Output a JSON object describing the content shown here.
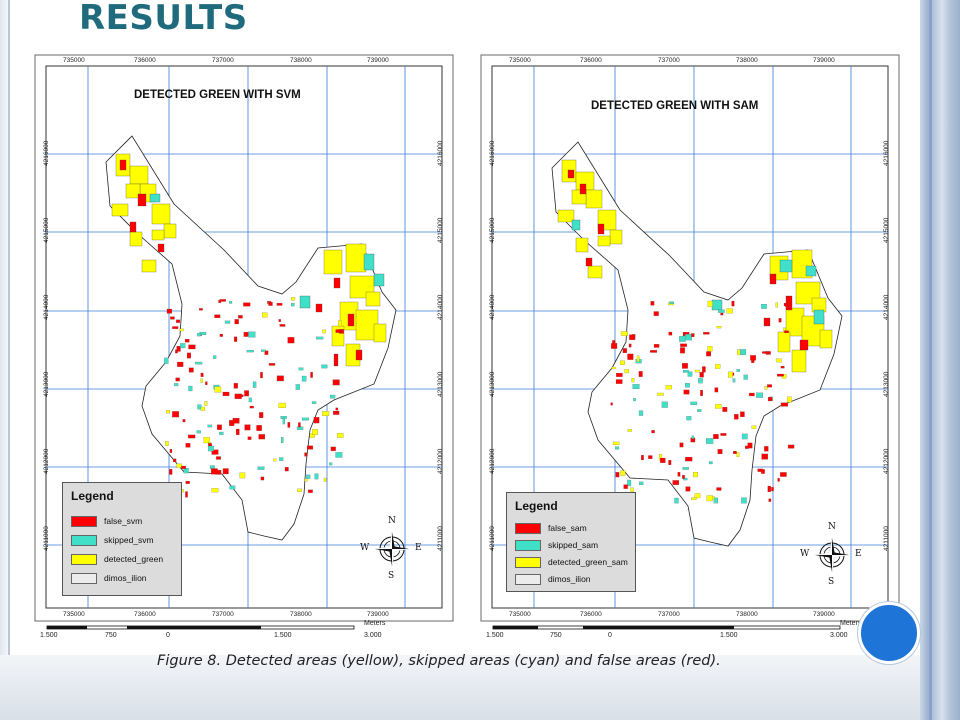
{
  "slide": {
    "title": "RESULTS",
    "caption": "Figure 8. Detected areas (yellow), skipped areas (cyan) and false areas (red).",
    "colors": {
      "title": "#1f6b7d",
      "false": "#ff0000",
      "skipped": "#40e0c8",
      "detected": "#ffff00",
      "boundary": "#e8e8e8",
      "grid": "#3b7bd8",
      "accent_circle": "#1f74d8"
    }
  },
  "maps": [
    {
      "id": "svm",
      "title": "DETECTED GREEN WITH SVM",
      "x_ticks": [
        "735000",
        "736000",
        "737000",
        "738000",
        "739000"
      ],
      "y_ticks": [
        "4211000",
        "4212000",
        "4213000",
        "4214000",
        "4215000",
        "4216000"
      ],
      "legend": {
        "title": "Legend",
        "items": [
          {
            "label": "false_svm",
            "color": "#ff0000"
          },
          {
            "label": "skipped_svm",
            "color": "#40e0c8"
          },
          {
            "label": "detected_green",
            "color": "#ffff00"
          },
          {
            "label": "dimos_ilion",
            "color": "#ececec"
          }
        ]
      },
      "compass": {
        "n": "N",
        "s": "S",
        "e": "E",
        "w": "W"
      },
      "scale": {
        "unit": "Meters",
        "labels": [
          "1.500",
          "750",
          "0",
          "1.500",
          "3.000"
        ]
      }
    },
    {
      "id": "sam",
      "title": "DETECTED GREEN WITH SAM",
      "x_ticks": [
        "735000",
        "736000",
        "737000",
        "738000",
        "739000"
      ],
      "y_ticks": [
        "4211000",
        "4212000",
        "4213000",
        "4214000",
        "4215000",
        "4216000"
      ],
      "legend": {
        "title": "Legend",
        "items": [
          {
            "label": "false_sam",
            "color": "#ff0000"
          },
          {
            "label": "skipped_sam",
            "color": "#40e0c8"
          },
          {
            "label": "detected_green_sam",
            "color": "#ffff00"
          },
          {
            "label": "dimos_ilion",
            "color": "#ececec"
          }
        ]
      },
      "compass": {
        "n": "N",
        "s": "S",
        "e": "E",
        "w": "W"
      },
      "scale": {
        "unit": "Meters",
        "labels": [
          "1.500",
          "750",
          "0",
          "1.500",
          "3.000"
        ]
      }
    }
  ]
}
